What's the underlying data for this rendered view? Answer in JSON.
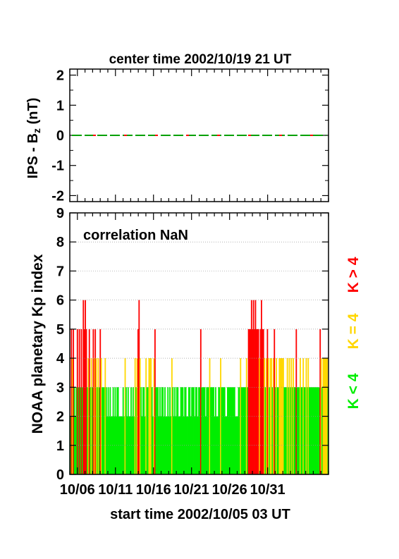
{
  "chart_data": [
    {
      "type": "line",
      "title": "center time 2002/10/19 21 UT",
      "ylabel_main": "IPS - B",
      "ylabel_sub": "z",
      "ylabel_unit": " (nT)",
      "ylim": [
        -2.2,
        2.2
      ],
      "yticks": [
        "2",
        "1",
        "0",
        "-1",
        "-2"
      ],
      "ytick_values": [
        2,
        1,
        0,
        -1,
        -2
      ],
      "series": [
        {
          "color": "#00a000",
          "style": "dashed",
          "x_range": [
            0,
            34
          ],
          "value": 0
        },
        {
          "color": "#ff0000",
          "style": "dashed",
          "x_range": [
            0,
            34
          ],
          "value": 0
        }
      ]
    },
    {
      "type": "bar",
      "annotation": "correlation NaN",
      "ylabel": "NOAA planetary Kp index",
      "xlabel": "start time 2002/10/05 03 UT",
      "ylim": [
        0,
        9
      ],
      "yticks": [
        "0",
        "1",
        "2",
        "3",
        "4",
        "5",
        "6",
        "7",
        "8",
        "9"
      ],
      "grid": true,
      "x_days_range": [
        0,
        34
      ],
      "xtick_days": [
        1,
        6,
        11,
        16,
        21,
        26
      ],
      "xtick_labels": [
        "10/06",
        "10/11",
        "10/16",
        "10/21",
        "10/26",
        "10/31"
      ],
      "legend": [
        {
          "label": "K < 4",
          "color": "#00ee00"
        },
        {
          "label": "K = 4",
          "color": "#ffd700"
        },
        {
          "label": "K > 4",
          "color": "#ff0000"
        }
      ],
      "colors": {
        "low": "#00ee00",
        "equal": "#ffd700",
        "high": "#ff0000"
      },
      "kp_values": [
        2,
        5,
        4,
        5,
        3,
        2,
        3,
        5,
        3,
        5,
        3,
        5,
        3,
        6,
        5,
        6,
        5,
        3,
        4,
        5,
        3,
        4,
        3,
        5,
        4,
        5,
        4,
        3,
        4,
        3,
        5,
        4,
        3,
        3,
        3,
        4,
        3,
        2,
        3,
        2,
        3,
        2,
        2,
        3,
        2,
        3,
        2,
        3,
        3,
        2,
        2,
        2,
        2,
        3,
        2,
        4,
        3,
        2,
        3,
        2,
        2,
        3,
        2,
        3,
        2,
        4,
        3,
        4,
        5,
        6,
        4,
        3,
        2,
        3,
        3,
        2,
        4,
        3,
        3,
        4,
        4,
        4,
        3,
        2,
        4,
        5,
        3,
        3,
        3,
        2,
        3,
        2,
        3,
        3,
        2,
        3,
        2,
        2,
        3,
        2,
        3,
        2,
        4,
        3,
        2,
        3,
        2,
        3,
        3,
        2,
        2,
        3,
        3,
        3,
        2,
        3,
        3,
        2,
        2,
        3,
        3,
        2,
        3,
        3,
        3,
        2,
        3,
        3,
        2,
        3,
        3,
        5,
        3,
        3,
        3,
        3,
        2,
        3,
        3,
        3,
        4,
        3,
        3,
        3,
        3,
        2,
        3,
        2,
        2,
        3,
        3,
        4,
        3,
        3,
        3,
        3,
        2,
        2,
        3,
        3,
        3,
        3,
        3,
        3,
        3,
        3,
        2,
        2,
        2,
        3,
        3,
        4,
        3,
        3,
        3,
        3,
        3,
        4,
        3,
        5,
        5,
        5,
        6,
        5,
        6,
        5,
        6,
        5,
        5,
        5,
        4,
        5,
        6,
        5,
        5,
        4,
        3,
        4,
        5,
        4,
        3,
        4,
        4,
        3,
        4,
        5,
        3,
        4,
        3,
        3,
        4,
        4,
        4,
        4,
        4,
        3,
        3,
        3,
        4,
        3,
        4,
        3,
        4,
        3,
        4,
        3,
        3,
        5,
        3,
        3,
        3,
        4,
        3,
        3,
        4,
        3,
        3,
        4,
        3,
        4,
        3,
        3,
        3,
        3,
        3,
        3,
        3,
        3,
        3,
        3,
        3,
        5,
        4,
        3,
        4,
        4,
        4,
        4,
        4,
        3
      ]
    }
  ]
}
